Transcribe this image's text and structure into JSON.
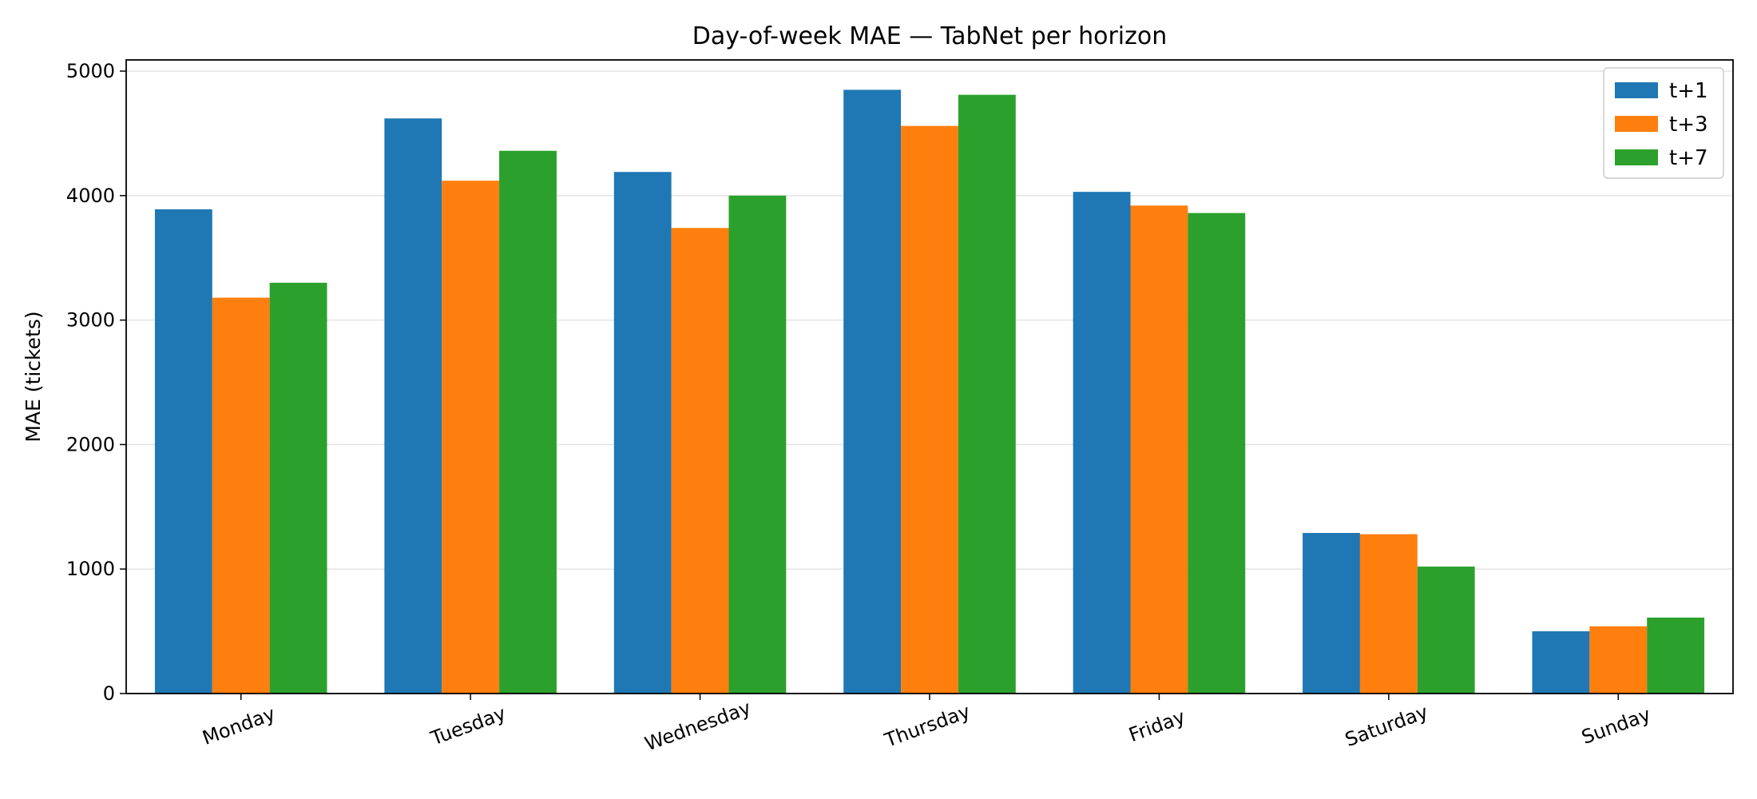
{
  "chart_data": {
    "type": "bar",
    "title": "Day-of-week MAE — TabNet per horizon",
    "xlabel": "",
    "ylabel": "MAE (tickets)",
    "categories": [
      "Monday",
      "Tuesday",
      "Wednesday",
      "Thursday",
      "Friday",
      "Saturday",
      "Sunday"
    ],
    "series": [
      {
        "name": "t+1",
        "color": "#1f77b4",
        "values": [
          3890,
          4620,
          4190,
          4850,
          4030,
          1290,
          500
        ]
      },
      {
        "name": "t+3",
        "color": "#ff7f0e",
        "values": [
          3180,
          4120,
          3740,
          4560,
          3920,
          1280,
          540
        ]
      },
      {
        "name": "t+7",
        "color": "#2ca02c",
        "values": [
          3300,
          4360,
          4000,
          4810,
          3860,
          1020,
          610
        ]
      }
    ],
    "ylim": [
      0,
      5090
    ],
    "yticks": [
      0,
      1000,
      2000,
      3000,
      4000,
      5000
    ],
    "grid": "horizontal",
    "legend_position": "top-right",
    "xtick_rotation": "slanted"
  }
}
